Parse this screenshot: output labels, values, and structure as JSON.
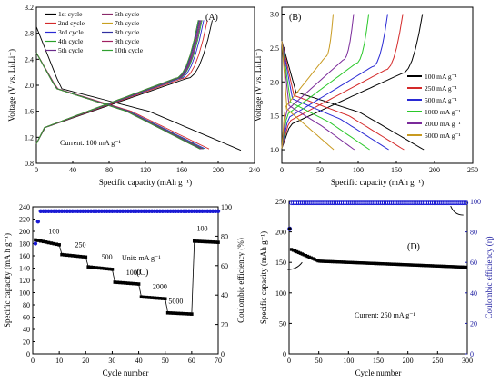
{
  "chart_data": [
    {
      "id": "A",
      "type": "line",
      "panel_label": "(A)",
      "xlabel": "Specific capacity (mAh g⁻¹)",
      "ylabel": "Voltage (V vs. Li/Li⁺)",
      "xlim": [
        0,
        240
      ],
      "ylim": [
        0.8,
        3.2
      ],
      "xticks": [
        0,
        40,
        80,
        120,
        160,
        200,
        240
      ],
      "yticks": [
        0.8,
        1.2,
        1.6,
        2.0,
        2.4,
        2.8,
        3.2
      ],
      "annotation": "Current: 100 mA g⁻¹",
      "legend_position": "top",
      "series": [
        {
          "name": "1st cycle",
          "color": "#000000",
          "cap": 225
        },
        {
          "name": "2nd cycle",
          "color": "#d42a2a",
          "cap": 190
        },
        {
          "name": "3rd cycle",
          "color": "#2a2ad4",
          "cap": 186
        },
        {
          "name": "4th cycle",
          "color": "#2aa02a",
          "cap": 184
        },
        {
          "name": "5th cycle",
          "color": "#6a2a8a",
          "cap": 183
        },
        {
          "name": "6th cycle",
          "color": "#8a2a6a",
          "cap": 182
        },
        {
          "name": "7th cycle",
          "color": "#c8a020",
          "cap": 181
        },
        {
          "name": "8th cycle",
          "color": "#3030a0",
          "cap": 181
        },
        {
          "name": "9th cycle",
          "color": "#a02060",
          "cap": 180
        },
        {
          "name": "10th cycle",
          "color": "#30a030",
          "cap": 180
        }
      ]
    },
    {
      "id": "B",
      "type": "line",
      "panel_label": "(B)",
      "xlabel": "Specific capacity (mAh g⁻¹)",
      "ylabel": "Voltage (V vs. Li/Li⁺)",
      "xlim": [
        0,
        250
      ],
      "ylim": [
        0.8,
        3.1
      ],
      "xticks": [
        0,
        50,
        100,
        150,
        200,
        250
      ],
      "yticks": [
        1.0,
        1.5,
        2.0,
        2.5,
        3.0
      ],
      "legend_position": "right",
      "series": [
        {
          "name": "100 mA g⁻¹",
          "color": "#000000",
          "cap": 186
        },
        {
          "name": "250 mA g⁻¹",
          "color": "#d42a2a",
          "cap": 160
        },
        {
          "name": "500 mA g⁻¹",
          "color": "#2a2ad4",
          "cap": 140
        },
        {
          "name": "1000 mA g⁻¹",
          "color": "#2ac82a",
          "cap": 115
        },
        {
          "name": "2000 mA g⁻¹",
          "color": "#7a2a9a",
          "cap": 95
        },
        {
          "name": "5000 mA g⁻¹",
          "color": "#c89a20",
          "cap": 68
        }
      ]
    },
    {
      "id": "C",
      "type": "scatter",
      "panel_label": "(C)",
      "xlabel": "Cycle number",
      "ylabel": "Specific capacity (mA h g⁻¹)",
      "y2label": "Coulombic efficiency (%)",
      "xlim": [
        0,
        70
      ],
      "ylim": [
        0,
        240
      ],
      "y2lim": [
        0,
        100
      ],
      "xticks": [
        0,
        10,
        20,
        30,
        40,
        50,
        60,
        70
      ],
      "yticks": [
        0,
        20,
        40,
        60,
        80,
        100,
        120,
        140,
        160,
        180,
        200,
        220,
        240
      ],
      "y2ticks": [
        0,
        20,
        40,
        60,
        80,
        100
      ],
      "unit_label": "Unit: mA g⁻¹",
      "rate_labels": [
        "100",
        "250",
        "500",
        "1000",
        "2000",
        "5000",
        "100"
      ],
      "capacity_steps": [
        {
          "rate": "100",
          "from": 1,
          "to": 10,
          "start": 186,
          "end": 178
        },
        {
          "rate": "250",
          "from": 11,
          "to": 20,
          "start": 162,
          "end": 158
        },
        {
          "rate": "500",
          "from": 21,
          "to": 30,
          "start": 142,
          "end": 138
        },
        {
          "rate": "1000",
          "from": 31,
          "to": 40,
          "start": 117,
          "end": 114
        },
        {
          "rate": "2000",
          "from": 41,
          "to": 50,
          "start": 93,
          "end": 90
        },
        {
          "rate": "5000",
          "from": 51,
          "to": 60,
          "start": 67,
          "end": 65
        },
        {
          "rate": "100",
          "from": 61,
          "to": 70,
          "start": 184,
          "end": 182
        }
      ],
      "efficiency": {
        "first": 75,
        "second": 90,
        "steady": 97
      }
    },
    {
      "id": "D",
      "type": "scatter",
      "panel_label": "(D)",
      "xlabel": "Cycle number",
      "ylabel": "Specific capacity (mAh g⁻¹)",
      "y2label": "Coulombic efficiency (η)",
      "xlim": [
        0,
        300
      ],
      "ylim": [
        0,
        250
      ],
      "y2lim": [
        0,
        100
      ],
      "xticks": [
        0,
        50,
        100,
        150,
        200,
        250,
        300
      ],
      "yticks": [
        0,
        50,
        100,
        150,
        200,
        250
      ],
      "y2ticks": [
        0,
        20,
        40,
        60,
        80,
        100
      ],
      "annotation": "Current: 250 mA g⁻¹",
      "capacity": {
        "first": 205,
        "second": 172,
        "cycle50": 152,
        "cycle300": 142
      },
      "efficiency": {
        "first": 82,
        "steady": 99
      }
    }
  ]
}
